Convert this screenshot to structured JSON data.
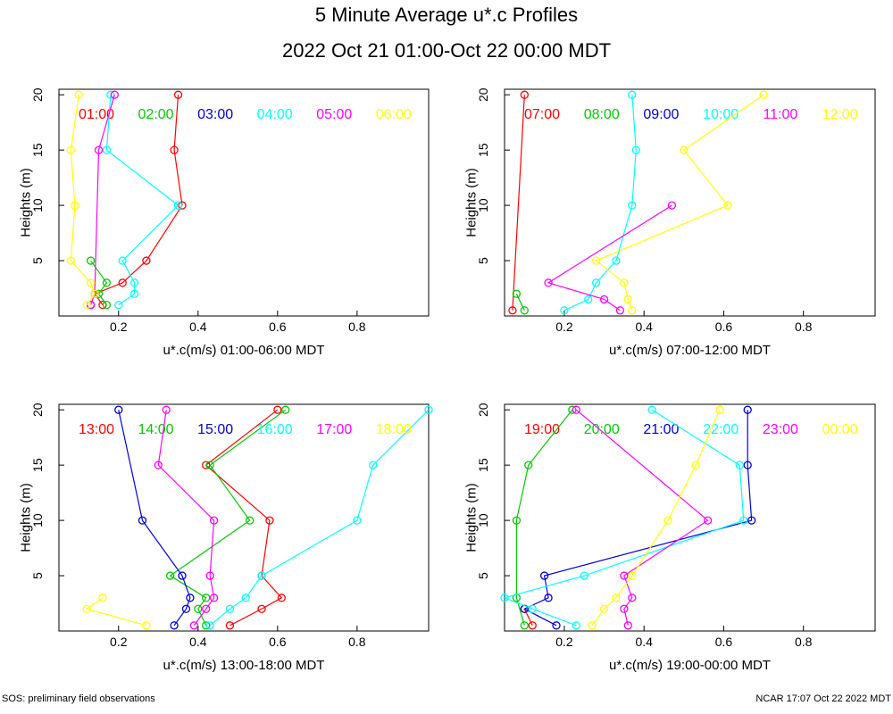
{
  "header": {
    "title": "5 Minute Average u*.c Profiles",
    "subtitle": "2022 Oct 21 01:00-Oct 22 00:00 MDT"
  },
  "footer": {
    "left": "SOS: preliminary field observations",
    "right": "NCAR 17:07 Oct 22 2022 MDT"
  },
  "colors": {
    "red": "#ff0000",
    "green": "#00cc00",
    "blue": "#0000dd",
    "cyan": "#00ffff",
    "magenta": "#ff00ff",
    "yellow": "#ffff00"
  },
  "chart_data": [
    {
      "type": "line",
      "xlabel": "u*.c(m/s) 01:00-06:00 MDT",
      "ylabel": "Heights (m)",
      "xlim": [
        0.05,
        0.98
      ],
      "ylim": [
        0,
        20.5
      ],
      "xticks": [
        0.2,
        0.4,
        0.6,
        0.8
      ],
      "yticks": [
        5,
        10,
        15,
        20
      ],
      "series": [
        {
          "name": "01:00",
          "color": "#ff0000",
          "points": [
            [
              0.16,
              1
            ],
            [
              0.14,
              2
            ],
            [
              0.21,
              3
            ],
            [
              0.27,
              5
            ],
            [
              0.36,
              10
            ],
            [
              0.34,
              15
            ],
            [
              0.35,
              20
            ]
          ]
        },
        {
          "name": "02:00",
          "color": "#00cc00",
          "points": [
            [
              0.17,
              1
            ],
            [
              0.15,
              2
            ],
            [
              0.17,
              3
            ],
            [
              0.13,
              5
            ]
          ]
        },
        {
          "name": "03:00",
          "color": "#0000dd",
          "points": [
            [
              0.13,
              1
            ]
          ]
        },
        {
          "name": "04:00",
          "color": "#00ffff",
          "points": [
            [
              0.2,
              1
            ],
            [
              0.24,
              2
            ],
            [
              0.24,
              3
            ],
            [
              0.21,
              5
            ],
            [
              0.35,
              10
            ],
            [
              0.17,
              15
            ],
            [
              0.18,
              20
            ]
          ]
        },
        {
          "name": "05:00",
          "color": "#ff00ff",
          "points": [
            [
              0.13,
              1
            ],
            [
              0.14,
              2
            ],
            [
              0.15,
              15
            ],
            [
              0.19,
              20
            ]
          ]
        },
        {
          "name": "06:00",
          "color": "#ffff00",
          "points": [
            [
              0.12,
              1
            ],
            [
              0.14,
              2
            ],
            [
              0.13,
              3
            ],
            [
              0.08,
              5
            ],
            [
              0.09,
              10
            ],
            [
              0.08,
              15
            ],
            [
              0.1,
              20
            ]
          ]
        }
      ]
    },
    {
      "type": "line",
      "xlabel": "u*.c(m/s) 07:00-12:00 MDT",
      "ylabel": "Heights (m)",
      "xlim": [
        0.05,
        0.98
      ],
      "ylim": [
        0,
        20.5
      ],
      "xticks": [
        0.2,
        0.4,
        0.6,
        0.8
      ],
      "yticks": [
        5,
        10,
        15,
        20
      ],
      "series": [
        {
          "name": "07:00",
          "color": "#ff0000",
          "points": [
            [
              0.07,
              0.5
            ],
            [
              0.1,
              20
            ]
          ]
        },
        {
          "name": "08:00",
          "color": "#00cc00",
          "points": [
            [
              0.1,
              0.5
            ],
            [
              0.08,
              2
            ]
          ]
        },
        {
          "name": "09:00",
          "color": "#0000dd",
          "points": []
        },
        {
          "name": "10:00",
          "color": "#00ffff",
          "points": [
            [
              0.2,
              0.5
            ],
            [
              0.26,
              1.5
            ],
            [
              0.28,
              3
            ],
            [
              0.33,
              5
            ],
            [
              0.37,
              10
            ],
            [
              0.38,
              15
            ],
            [
              0.37,
              20
            ]
          ]
        },
        {
          "name": "11:00",
          "color": "#ff00ff",
          "points": [
            [
              0.34,
              0.5
            ],
            [
              0.3,
              1.5
            ],
            [
              0.16,
              3
            ],
            [
              0.47,
              10
            ]
          ]
        },
        {
          "name": "12:00",
          "color": "#ffff00",
          "points": [
            [
              0.37,
              0.5
            ],
            [
              0.36,
              1.5
            ],
            [
              0.35,
              3
            ],
            [
              0.28,
              5
            ],
            [
              0.61,
              10
            ],
            [
              0.5,
              15
            ],
            [
              0.7,
              20
            ]
          ]
        }
      ]
    },
    {
      "type": "line",
      "xlabel": "u*.c(m/s) 13:00-18:00 MDT",
      "ylabel": "Heights (m)",
      "xlim": [
        0.05,
        0.98
      ],
      "ylim": [
        0,
        20.5
      ],
      "xticks": [
        0.2,
        0.4,
        0.6,
        0.8
      ],
      "yticks": [
        5,
        10,
        15,
        20
      ],
      "series": [
        {
          "name": "13:00",
          "color": "#ff0000",
          "points": [
            [
              0.48,
              0.5
            ],
            [
              0.56,
              2
            ],
            [
              0.61,
              3
            ],
            [
              0.56,
              5
            ],
            [
              0.58,
              10
            ],
            [
              0.42,
              15
            ],
            [
              0.6,
              20
            ]
          ]
        },
        {
          "name": "14:00",
          "color": "#00cc00",
          "points": [
            [
              0.42,
              0.5
            ],
            [
              0.4,
              2
            ],
            [
              0.42,
              3
            ],
            [
              0.33,
              5
            ],
            [
              0.53,
              10
            ],
            [
              0.43,
              15
            ],
            [
              0.62,
              20
            ]
          ]
        },
        {
          "name": "15:00",
          "color": "#0000dd",
          "points": [
            [
              0.34,
              0.5
            ],
            [
              0.37,
              2
            ],
            [
              0.38,
              3
            ],
            [
              0.36,
              5
            ],
            [
              0.26,
              10
            ],
            [
              0.2,
              20
            ]
          ]
        },
        {
          "name": "16:00",
          "color": "#00ffff",
          "points": [
            [
              0.43,
              0.5
            ],
            [
              0.48,
              2
            ],
            [
              0.52,
              3
            ],
            [
              0.56,
              5
            ],
            [
              0.8,
              10
            ],
            [
              0.84,
              15
            ],
            [
              0.98,
              20
            ]
          ]
        },
        {
          "name": "17:00",
          "color": "#ff00ff",
          "points": [
            [
              0.39,
              0.5
            ],
            [
              0.42,
              2
            ],
            [
              0.44,
              3
            ],
            [
              0.43,
              5
            ],
            [
              0.44,
              10
            ],
            [
              0.3,
              15
            ],
            [
              0.32,
              20
            ]
          ]
        },
        {
          "name": "18:00",
          "color": "#ffff00",
          "points": [
            [
              0.27,
              0.5
            ],
            [
              0.12,
              2
            ],
            [
              0.16,
              3
            ]
          ]
        }
      ]
    },
    {
      "type": "line",
      "xlabel": "u*.c(m/s) 19:00-00:00 MDT",
      "ylabel": "Heights (m)",
      "xlim": [
        0.05,
        0.98
      ],
      "ylim": [
        0,
        20.5
      ],
      "xticks": [
        0.2,
        0.4,
        0.6,
        0.8
      ],
      "yticks": [
        5,
        10,
        15,
        20
      ],
      "series": [
        {
          "name": "19:00",
          "color": "#ff0000",
          "points": [
            [
              0.12,
              0.5
            ],
            [
              0.1,
              2
            ]
          ]
        },
        {
          "name": "20:00",
          "color": "#00cc00",
          "points": [
            [
              0.1,
              0.5
            ],
            [
              0.08,
              3
            ],
            [
              0.08,
              10
            ],
            [
              0.11,
              15
            ],
            [
              0.22,
              20
            ]
          ]
        },
        {
          "name": "21:00",
          "color": "#0000dd",
          "points": [
            [
              0.18,
              0.5
            ],
            [
              0.1,
              2
            ],
            [
              0.16,
              3
            ],
            [
              0.15,
              5
            ],
            [
              0.67,
              10
            ],
            [
              0.66,
              15
            ],
            [
              0.66,
              20
            ]
          ]
        },
        {
          "name": "22:00",
          "color": "#00ffff",
          "points": [
            [
              0.23,
              0.5
            ],
            [
              0.12,
              2
            ],
            [
              0.05,
              3
            ],
            [
              0.25,
              5
            ],
            [
              0.65,
              10
            ],
            [
              0.64,
              15
            ],
            [
              0.42,
              20
            ]
          ]
        },
        {
          "name": "23:00",
          "color": "#ff00ff",
          "points": [
            [
              0.36,
              0.5
            ],
            [
              0.35,
              2
            ],
            [
              0.37,
              3
            ],
            [
              0.35,
              5
            ],
            [
              0.56,
              10
            ],
            [
              0.23,
              20
            ]
          ]
        },
        {
          "name": "00:00",
          "color": "#ffff00",
          "points": [
            [
              0.27,
              0.5
            ],
            [
              0.3,
              2
            ],
            [
              0.33,
              3
            ],
            [
              0.37,
              5
            ],
            [
              0.46,
              10
            ],
            [
              0.53,
              15
            ],
            [
              0.59,
              20
            ]
          ]
        }
      ]
    }
  ]
}
